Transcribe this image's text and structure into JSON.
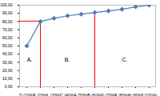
{
  "chart_data": {
    "type": "line",
    "categories": [
      "D (10%)",
      "E (20%)",
      "L (30%)",
      "C (40%)",
      "A (50%)",
      "B (60%)",
      "G (70%)",
      "F (80%)",
      "H (90%)",
      "J (100%)"
    ],
    "values": [
      50,
      80,
      84,
      87,
      89,
      91,
      93,
      95,
      98,
      100
    ],
    "color": "#4a7ebb",
    "marker": "diamond",
    "ylim": [
      0,
      100
    ],
    "yticks": [
      {
        "value": 0,
        "label": "0,00"
      },
      {
        "value": 10,
        "label": "10,00"
      },
      {
        "value": 20,
        "label": "20,00"
      },
      {
        "value": 30,
        "label": "30,00"
      },
      {
        "value": 40,
        "label": "40,00"
      },
      {
        "value": 50,
        "label": "50,00"
      },
      {
        "value": 60,
        "label": "60,00"
      },
      {
        "value": 70,
        "label": "70,00"
      },
      {
        "value": 80,
        "label": "80,00"
      },
      {
        "value": 90,
        "label": "90,00"
      },
      {
        "value": 100,
        "label": "100,00"
      }
    ],
    "grid": false,
    "annotations": [
      "A.",
      "B.",
      "C."
    ],
    "cutoffs": [
      "E (20%)",
      "B (60%)"
    ],
    "cutoff_color": "#ff0000"
  }
}
